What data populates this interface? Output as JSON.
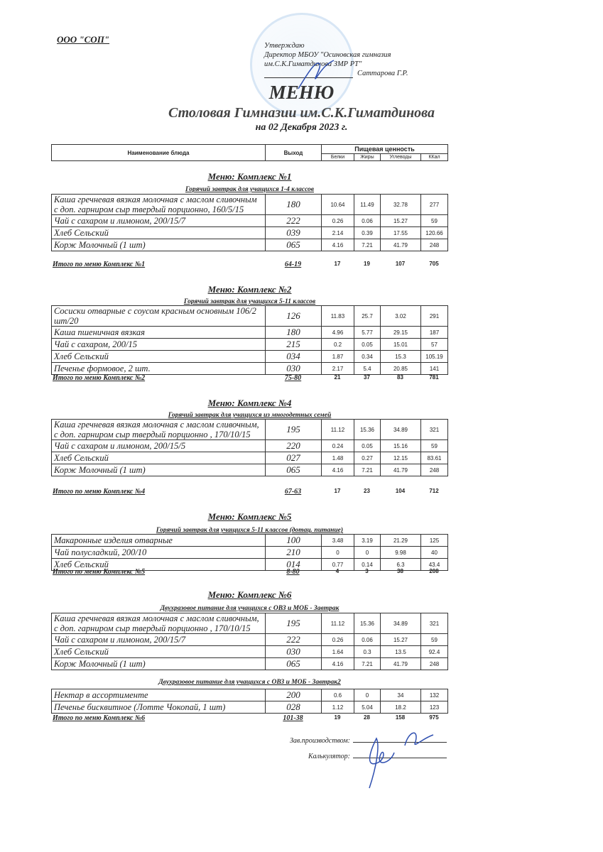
{
  "header": {
    "organization": "ООО \"СОП\"",
    "approval": [
      "Утверждаю",
      "Директор МБОУ \"Осиновская гимназия",
      "им.С.К.Гиматдинова ЗМР РТ\""
    ],
    "approver": "Саттарова Г.Р.",
    "title": "МЕНЮ",
    "subtitle": "Столовая Гимназии им.С.К.Гиматдинова",
    "date": "на 02 Декабря 2023 г."
  },
  "columns": {
    "name": "Наименование блюда",
    "output": "Выход",
    "nutrition": "Пищевая ценность",
    "protein": "Белки",
    "fat": "Жиры",
    "carbs": "Углеводы",
    "kcal": "ККал"
  },
  "sections": [
    {
      "title": "Меню: Комплекс №1",
      "groups": [
        {
          "subtitle": "Горячий завтрак для учащихся 1-4 классов",
          "rows": [
            {
              "name": "Каша гречневая вязкая молочная с маслом сливочным с доп. гарниром сыр твердый порционно, 160/5/15",
              "output": "180",
              "protein": "10.64",
              "fat": "11.49",
              "carbs": "32.78",
              "kcal": "277"
            },
            {
              "name": "Чай с сахаром и лимоном, 200/15/7",
              "output": "222",
              "protein": "0.26",
              "fat": "0.06",
              "carbs": "15.27",
              "kcal": "59"
            },
            {
              "name": "Хлеб Сельский",
              "output": "039",
              "protein": "2.14",
              "fat": "0.39",
              "carbs": "17.55",
              "kcal": "120.66"
            },
            {
              "name": "Корж Молочный (1 шт)",
              "output": "065",
              "protein": "4.16",
              "fat": "7.21",
              "carbs": "41.79",
              "kcal": "248"
            }
          ]
        }
      ],
      "total": {
        "label": "Итого по меню Комплекс №1",
        "price": "64-19",
        "protein": "17",
        "fat": "19",
        "carbs": "107",
        "kcal": "705"
      }
    },
    {
      "title": "Меню: Комплекс №2",
      "groups": [
        {
          "subtitle": "Горячий завтрак для учащихся 5-11 классов",
          "rows": [
            {
              "name": "Сосиски  отварные с соусом красным основным 106/2 шт/20",
              "output": "126",
              "protein": "11.83",
              "fat": "25.7",
              "carbs": "3.02",
              "kcal": "291"
            },
            {
              "name": "Каша пшеничная вязкая",
              "output": "180",
              "protein": "4.96",
              "fat": "5.77",
              "carbs": "29.15",
              "kcal": "187"
            },
            {
              "name": "Чай с сахаром, 200/15",
              "output": "215",
              "protein": "0.2",
              "fat": "0.05",
              "carbs": "15.01",
              "kcal": "57"
            },
            {
              "name": "Хлеб Сельский",
              "output": "034",
              "protein": "1.87",
              "fat": "0.34",
              "carbs": "15.3",
              "kcal": "105.19"
            },
            {
              "name": "Печенье формовое, 2 шт.",
              "output": "030",
              "protein": "2.17",
              "fat": "5.4",
              "carbs": "20.85",
              "kcal": "141"
            }
          ]
        }
      ],
      "total": {
        "label": "Итого по меню Комплекс №2",
        "price": "75-80",
        "protein": "21",
        "fat": "37",
        "carbs": "83",
        "kcal": "781"
      }
    },
    {
      "title": "Меню: Комплекс №4",
      "groups": [
        {
          "subtitle": "Горячий завтрак для учащихся из многодетных семей",
          "rows": [
            {
              "name": "Каша гречневая вязкая молочная с маслом сливочным, с доп. гарниром сыр твердый порционно , 170/10/15",
              "output": "195",
              "protein": "11.12",
              "fat": "15.36",
              "carbs": "34.89",
              "kcal": "321"
            },
            {
              "name": "Чай с сахаром и лимоном, 200/15/5",
              "output": "220",
              "protein": "0.24",
              "fat": "0.05",
              "carbs": "15.16",
              "kcal": "59"
            },
            {
              "name": "Хлеб Сельский",
              "output": "027",
              "protein": "1.48",
              "fat": "0.27",
              "carbs": "12.15",
              "kcal": "83.61"
            },
            {
              "name": "Корж Молочный (1 шт)",
              "output": "065",
              "protein": "4.16",
              "fat": "7.21",
              "carbs": "41.79",
              "kcal": "248"
            }
          ]
        }
      ],
      "total": {
        "label": "Итого по меню Комплекс №4",
        "price": "67-63",
        "protein": "17",
        "fat": "23",
        "carbs": "104",
        "kcal": "712"
      }
    },
    {
      "title": "Меню: Комплекс №5",
      "groups": [
        {
          "subtitle": "Горячий завтрак для учащихся 5-11 классов (дотац. питание)",
          "rows": [
            {
              "name": "Макаронные изделия отварные",
              "output": "100",
              "protein": "3.48",
              "fat": "3.19",
              "carbs": "21.29",
              "kcal": "125"
            },
            {
              "name": "Чай полусладкий, 200/10",
              "output": "210",
              "protein": "0",
              "fat": "0",
              "carbs": "9.98",
              "kcal": "40"
            },
            {
              "name": "Хлеб Сельский",
              "output": "014",
              "protein": "0.77",
              "fat": "0.14",
              "carbs": "6.3",
              "kcal": "43.4"
            }
          ]
        }
      ],
      "total": {
        "label": "Итого по меню Комплекс №5",
        "price": "8-80",
        "protein": "4",
        "fat": "3",
        "carbs": "38",
        "kcal": "208"
      }
    },
    {
      "title": "Меню: Комплекс №6",
      "groups": [
        {
          "subtitle": "Двухразовое питание для учащихся с ОВЗ и МОБ - Завтрак",
          "rows": [
            {
              "name": "Каша гречневая вязкая молочная с маслом сливочным, с доп. гарниром сыр твердый порционно , 170/10/15",
              "output": "195",
              "protein": "11.12",
              "fat": "15.36",
              "carbs": "34.89",
              "kcal": "321"
            },
            {
              "name": "Чай с сахаром и лимоном, 200/15/7",
              "output": "222",
              "protein": "0.26",
              "fat": "0.06",
              "carbs": "15.27",
              "kcal": "59"
            },
            {
              "name": "Хлеб Сельский",
              "output": "030",
              "protein": "1.64",
              "fat": "0.3",
              "carbs": "13.5",
              "kcal": "92.4"
            },
            {
              "name": "Корж Молочный (1 шт)",
              "output": "065",
              "protein": "4.16",
              "fat": "7.21",
              "carbs": "41.79",
              "kcal": "248"
            }
          ]
        },
        {
          "subtitle": "Двухразовое питание для учащихся с ОВЗ и МОБ - Завтрак2",
          "rows": [
            {
              "name": "Нектар в ассортименте",
              "output": "200",
              "protein": "0.6",
              "fat": "0",
              "carbs": "34",
              "kcal": "132"
            },
            {
              "name": "Печенье бисквитное (Лотте Чокопай, 1 шт)",
              "output": "028",
              "protein": "1.12",
              "fat": "5.04",
              "carbs": "18.2",
              "kcal": "123"
            }
          ]
        }
      ],
      "total": {
        "label": "Итого по меню Комплекс №6",
        "price": "101-38",
        "protein": "19",
        "fat": "28",
        "carbs": "158",
        "kcal": "975"
      }
    }
  ],
  "signatures": {
    "production_head": "Зав.производством:",
    "calculator": "Калькулятор:"
  }
}
